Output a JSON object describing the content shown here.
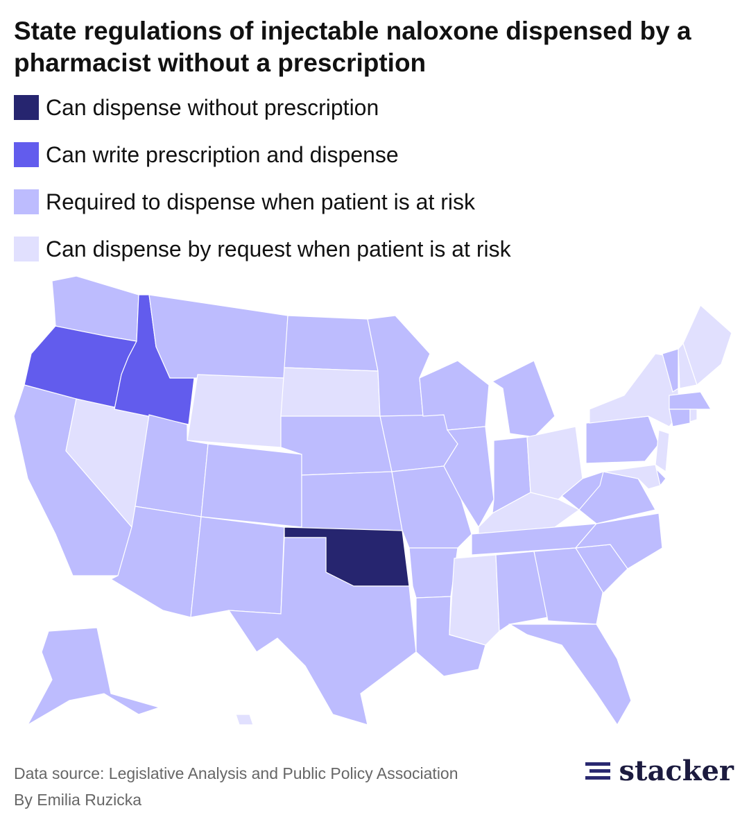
{
  "title": "State regulations of injectable naloxone dispensed by a pharmacist without a prescription",
  "legend": [
    {
      "label": "Can dispense without prescription",
      "color": "#26256f"
    },
    {
      "label": "Can write prescription and dispense",
      "color": "#625ced"
    },
    {
      "label": "Required to dispense when patient is at risk",
      "color": "#bdbcfe"
    },
    {
      "label": "Can dispense by request when patient is at risk",
      "color": "#e1e0fe"
    }
  ],
  "region_categories": [
    2,
    1,
    2,
    3,
    1,
    2,
    3,
    2,
    2,
    2,
    2,
    2,
    3,
    2,
    2,
    0,
    2,
    2,
    2,
    2,
    2,
    2,
    2,
    2,
    2,
    2,
    3,
    3,
    2,
    3,
    2,
    2,
    2,
    2,
    2,
    2,
    2,
    2,
    3,
    2,
    3,
    3,
    2,
    2,
    3,
    3,
    2,
    3,
    2,
    3
  ],
  "source": "Data source: Legislative Analysis and Public Policy Association",
  "byline": "By Emilia Ruzicka",
  "logo": "stacker"
}
